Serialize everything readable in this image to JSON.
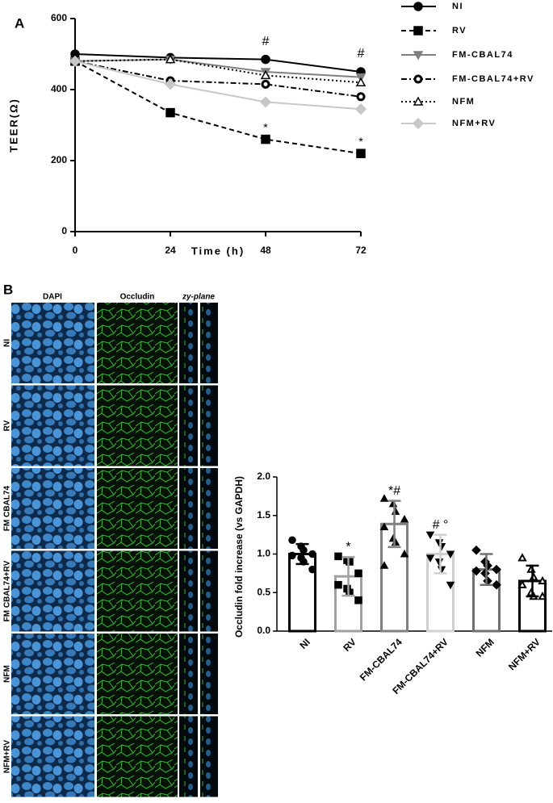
{
  "panel_labels": [
    "A",
    "B"
  ],
  "chart_data": [
    {
      "type": "line",
      "ylabel": "TEER(Ω)",
      "xlabel": "Time (h)",
      "x": [
        0,
        24,
        48,
        72
      ],
      "xlim": [
        0,
        72
      ],
      "xticks": [
        0,
        24,
        48,
        72
      ],
      "ylim": [
        0,
        600
      ],
      "yticks": [
        0,
        200,
        400,
        600
      ],
      "series": [
        {
          "name": "NI",
          "color": "#000000",
          "marker": "circle",
          "marker_fill": "#000000",
          "line_style": "solid",
          "values": [
            500,
            490,
            485,
            450
          ],
          "point_labels": [
            null,
            null,
            "#",
            "#"
          ]
        },
        {
          "name": "RV",
          "color": "#000000",
          "marker": "square",
          "marker_fill": "#000000",
          "line_style": "dashed",
          "values": [
            480,
            335,
            260,
            220
          ],
          "point_labels": [
            null,
            null,
            "*",
            "*"
          ]
        },
        {
          "name": "FM-CBAL74",
          "color": "#808080",
          "marker": "triangle-down",
          "marker_fill": "#808080",
          "line_style": "solid",
          "values": [
            480,
            485,
            450,
            435
          ]
        },
        {
          "name": "FM-CBAL74+RV",
          "color": "#000000",
          "marker": "ring",
          "marker_fill": "#ffffff",
          "line_style": "dashdot",
          "values": [
            480,
            425,
            415,
            380
          ]
        },
        {
          "name": "NFM",
          "color": "#000000",
          "marker": "triangle-up",
          "marker_fill": "#ffffff",
          "line_style": "dotted",
          "values": [
            480,
            485,
            440,
            420
          ]
        },
        {
          "name": "NFM+RV",
          "color": "#c8c8c8",
          "marker": "diamond",
          "marker_fill": "#c8c8c8",
          "line_style": "solid",
          "values": [
            480,
            415,
            365,
            345
          ]
        }
      ]
    },
    {
      "type": "bar",
      "ylabel": "Occludin fold increase (vs GAPDH)",
      "categories": [
        "NI",
        "RV",
        "FM-CBAL74",
        "FM-CBAL74+RV",
        "NFM",
        "NFM+RV"
      ],
      "values": [
        1.0,
        0.71,
        1.39,
        1.0,
        0.8,
        0.65
      ],
      "errors": [
        0.13,
        0.25,
        0.3,
        0.25,
        0.2,
        0.2
      ],
      "colors": [
        "#000000",
        "#a0a0a0",
        "#808080",
        "#d0d0d0",
        "#707070",
        "#000000"
      ],
      "markers": [
        "circle",
        "square",
        "triangle-up",
        "triangle-down",
        "diamond",
        "triangle-open"
      ],
      "points": [
        [
          1.18,
          1.1,
          1.05,
          1.0,
          0.98,
          0.95,
          0.9,
          0.8
        ],
        [
          0.97,
          0.92,
          0.9,
          0.75,
          0.6,
          0.55,
          0.5,
          0.4
        ],
        [
          1.72,
          1.65,
          1.55,
          1.45,
          1.35,
          1.2,
          1.15,
          1.0,
          0.85
        ],
        [
          1.25,
          1.15,
          1.1,
          1.0,
          0.95,
          0.9,
          0.8,
          0.6
        ],
        [
          1.05,
          0.9,
          0.85,
          0.8,
          0.78,
          0.75,
          0.65,
          0.6
        ],
        [
          0.95,
          0.8,
          0.7,
          0.65,
          0.6,
          0.5,
          0.45,
          0.45
        ]
      ],
      "annotations": [
        null,
        "*",
        "*#",
        "# °",
        null,
        null
      ],
      "ylim": [
        0,
        2
      ],
      "yticks": [
        {
          "value": 0,
          "label": "0.0"
        },
        {
          "value": 0.5,
          "label": "0.5"
        },
        {
          "value": 1,
          "label": "1.0"
        },
        {
          "value": 1.5,
          "label": "1.5"
        },
        {
          "value": 2,
          "label": "2.0"
        }
      ]
    }
  ],
  "micrographs": {
    "column_headers": [
      "DAPI",
      "Occludin",
      "zy-plane"
    ],
    "row_labels": [
      "NI",
      "RV",
      "FM CBAL74",
      "FM CBAL74+RV",
      "NFM",
      "NFM+RV"
    ]
  }
}
